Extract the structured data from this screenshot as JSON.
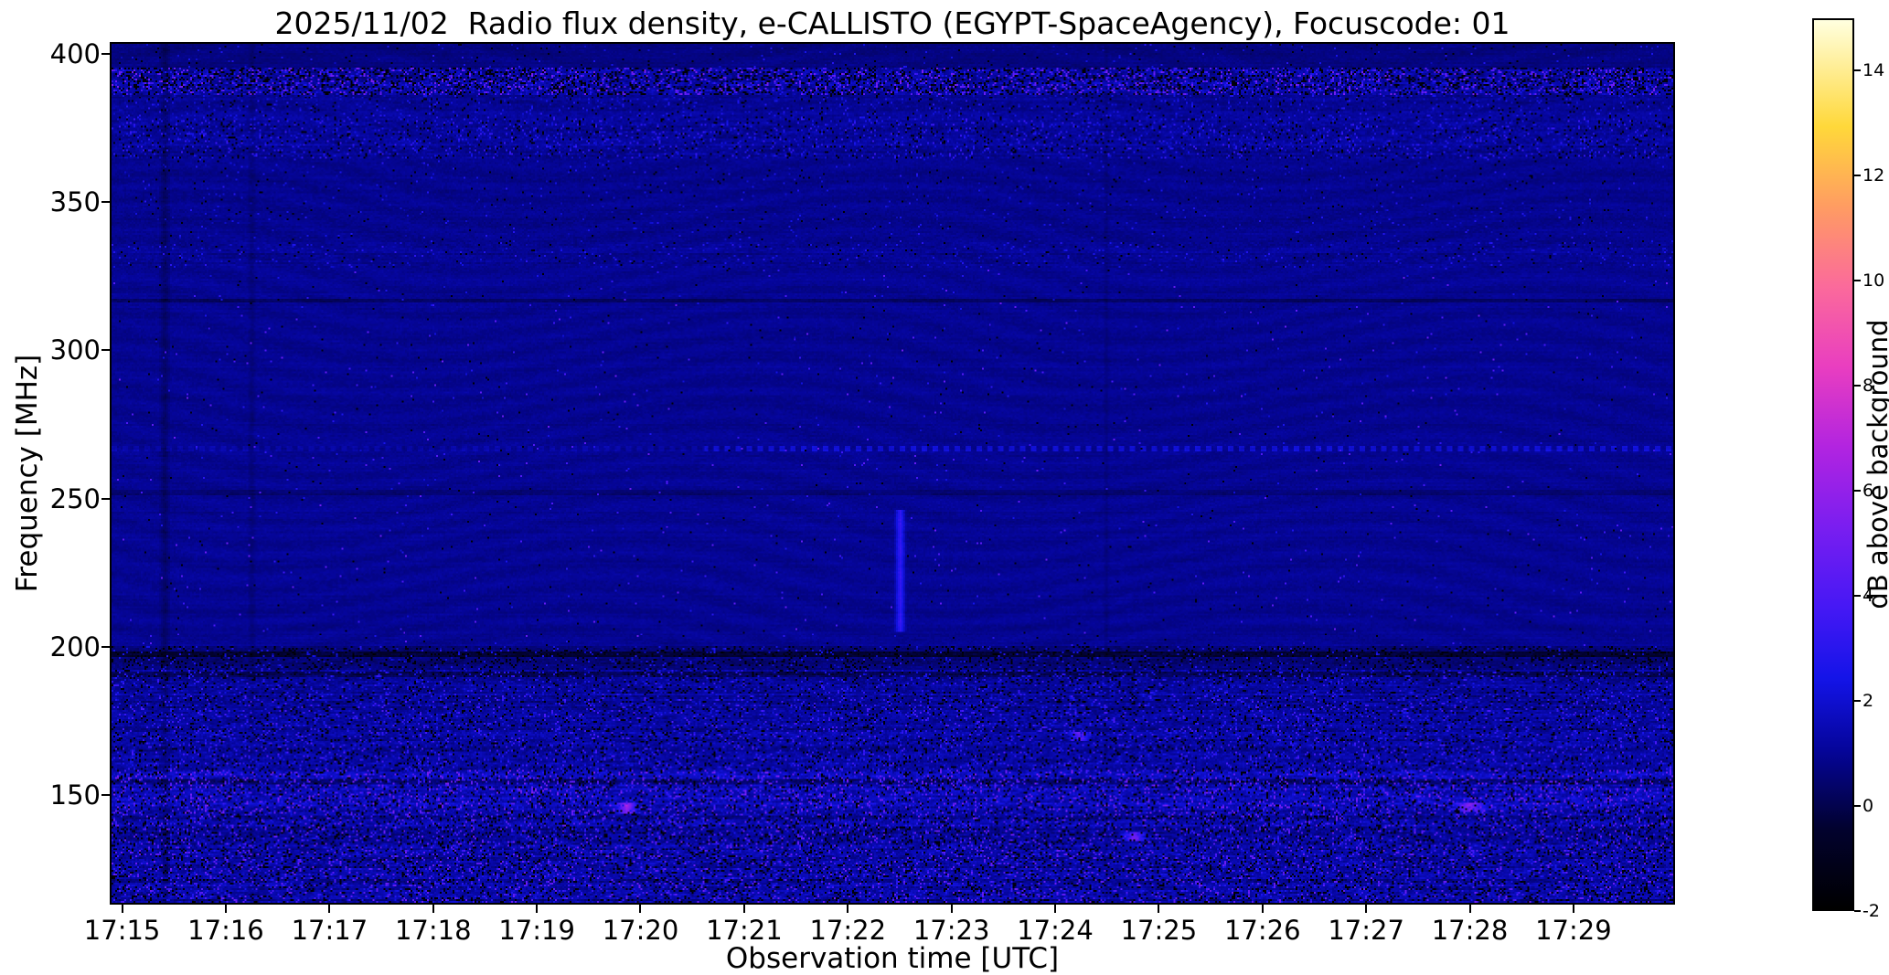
{
  "chart_data": {
    "type": "heatmap",
    "title": "2025/11/02  Radio flux density, e-CALLISTO (EGYPT-SpaceAgency), Focuscode: 01",
    "xlabel": "Observation time [UTC]",
    "ylabel": "Frequency [MHz]",
    "x_range": [
      "17:15",
      "17:30"
    ],
    "x_ticks": [
      {
        "t": 0,
        "label": "17:15"
      },
      {
        "t": 1,
        "label": "17:16"
      },
      {
        "t": 2,
        "label": "17:17"
      },
      {
        "t": 3,
        "label": "17:18"
      },
      {
        "t": 4,
        "label": "17:19"
      },
      {
        "t": 5,
        "label": "17:20"
      },
      {
        "t": 6,
        "label": "17:21"
      },
      {
        "t": 7,
        "label": "17:22"
      },
      {
        "t": 8,
        "label": "17:23"
      },
      {
        "t": 9,
        "label": "17:24"
      },
      {
        "t": 10,
        "label": "17:25"
      },
      {
        "t": 11,
        "label": "17:26"
      },
      {
        "t": 12,
        "label": "17:27"
      },
      {
        "t": 13,
        "label": "17:28"
      },
      {
        "t": 14,
        "label": "17:29"
      }
    ],
    "y_ticks": [
      400,
      350,
      300,
      250,
      200,
      150
    ],
    "y_range": [
      113,
      404
    ],
    "grid": false,
    "colorbar": {
      "label": "dB above background",
      "ticks": [
        14,
        12,
        10,
        8,
        6,
        4,
        2,
        0,
        -2
      ],
      "range": [
        -2,
        15
      ],
      "stops": [
        [
          0.0,
          "#000000"
        ],
        [
          0.09,
          "#02022e"
        ],
        [
          0.18,
          "#05059b"
        ],
        [
          0.26,
          "#1414e8"
        ],
        [
          0.34,
          "#4618f5"
        ],
        [
          0.43,
          "#7a1ef0"
        ],
        [
          0.52,
          "#b224e0"
        ],
        [
          0.61,
          "#e93ec0"
        ],
        [
          0.7,
          "#fb6a9b"
        ],
        [
          0.79,
          "#ff9c62"
        ],
        [
          0.88,
          "#ffd83a"
        ],
        [
          1.0,
          "#ffffdf"
        ]
      ]
    },
    "bands": [
      {
        "fmin": 396,
        "fmax": 404.5,
        "mean": 0.7,
        "sigma": 0.3,
        "speckle": 0.01,
        "sp_lo": 1.5,
        "sp_hi": 3.0,
        "dropout": 0.01,
        "streak": 0.3
      },
      {
        "fmin": 387,
        "fmax": 396,
        "mean": 1.3,
        "sigma": 1.2,
        "speckle": 0.16,
        "sp_lo": 2.0,
        "sp_hi": 5.5,
        "dropout": 0.2,
        "streak": 0.45
      },
      {
        "fmin": 379,
        "fmax": 387,
        "mean": 1.0,
        "sigma": 0.5,
        "speckle": 0.05,
        "sp_lo": 1.5,
        "sp_hi": 3.0,
        "dropout": 0.03,
        "streak": 0.35
      },
      {
        "fmin": 365,
        "fmax": 379,
        "mean": 1.05,
        "sigma": 0.7,
        "speckle": 0.09,
        "sp_lo": 1.5,
        "sp_hi": 3.5,
        "dropout": 0.05,
        "streak": 0.4
      },
      {
        "fmin": 337,
        "fmax": 365,
        "mean": 0.9,
        "sigma": 0.35,
        "speckle": 0.012,
        "sp_lo": 1.5,
        "sp_hi": 3.0,
        "dropout": 0.008,
        "streak": 0.3
      },
      {
        "fmin": 328,
        "fmax": 337,
        "mean": 1.0,
        "sigma": 0.5,
        "speckle": 0.03,
        "sp_lo": 1.5,
        "sp_hi": 3.2,
        "dropout": 0.015,
        "streak": 0.35
      },
      {
        "fmin": 200,
        "fmax": 328,
        "mean": 0.95,
        "sigma": 0.3,
        "speckle": 0.004,
        "sp_lo": 2.0,
        "sp_hi": 5.0,
        "dropout": 0.003,
        "streak": 0.3
      },
      {
        "fmin": 192,
        "fmax": 200,
        "mean": 0.55,
        "sigma": 0.55,
        "speckle": 0.04,
        "sp_lo": 1.5,
        "sp_hi": 3.0,
        "dropout": 0.12,
        "streak": 0.35
      },
      {
        "fmin": 183,
        "fmax": 192,
        "mean": 1.05,
        "sigma": 0.85,
        "speckle": 0.09,
        "sp_lo": 1.5,
        "sp_hi": 3.5,
        "dropout": 0.07,
        "streak": 0.4
      },
      {
        "fmin": 158,
        "fmax": 183,
        "mean": 1.15,
        "sigma": 0.95,
        "speckle": 0.11,
        "sp_lo": 1.5,
        "sp_hi": 4.0,
        "dropout": 0.08,
        "streak": 0.45
      },
      {
        "fmin": 143,
        "fmax": 158,
        "mean": 1.45,
        "sigma": 1.25,
        "speckle": 0.14,
        "sp_lo": 2.0,
        "sp_hi": 5.5,
        "dropout": 0.1,
        "streak": 0.5
      },
      {
        "fmin": 112,
        "fmax": 143,
        "mean": 1.25,
        "sigma": 1.15,
        "speckle": 0.11,
        "sp_lo": 2.0,
        "sp_hi": 5.0,
        "dropout": 0.12,
        "streak": 0.45
      }
    ],
    "lines": [
      {
        "f": 317,
        "delta": -0.7,
        "dashed": false
      },
      {
        "f": 267,
        "delta": 1.1,
        "dashed": true,
        "start_frac": 0.38
      },
      {
        "f": 252,
        "delta": -0.45,
        "dashed": false
      },
      {
        "f": 197,
        "delta": -0.9,
        "dashed": false
      },
      {
        "f": 190.5,
        "delta": -0.8,
        "dashed": false
      },
      {
        "f": 154,
        "delta": -0.8,
        "dashed": false
      }
    ],
    "vertical_events": [
      {
        "time_frac": 0.034,
        "fmin": 112,
        "fmax": 404,
        "delta": -0.6,
        "width": 0.004
      },
      {
        "time_frac": 0.09,
        "fmin": 112,
        "fmax": 404,
        "delta": -0.35,
        "width": 0.003
      },
      {
        "time_frac": 0.637,
        "fmin": 112,
        "fmax": 404,
        "delta": -0.3,
        "width": 0.002
      },
      {
        "time_frac": 0.505,
        "fmin": 205,
        "fmax": 246,
        "delta": 2.4,
        "width": 0.004
      },
      {
        "time_frac": 0.33,
        "fmin": 143,
        "fmax": 147,
        "delta": 4.5,
        "width": 0.008
      },
      {
        "time_frac": 0.655,
        "fmin": 134,
        "fmax": 137,
        "delta": 4.0,
        "width": 0.01
      },
      {
        "time_frac": 0.62,
        "fmin": 168,
        "fmax": 171,
        "delta": 3.5,
        "width": 0.008
      },
      {
        "time_frac": 0.87,
        "fmin": 144,
        "fmax": 147,
        "delta": 4.0,
        "width": 0.012
      }
    ],
    "noise_seed": 42,
    "grid_cols": 856,
    "grid_rows": 472
  }
}
